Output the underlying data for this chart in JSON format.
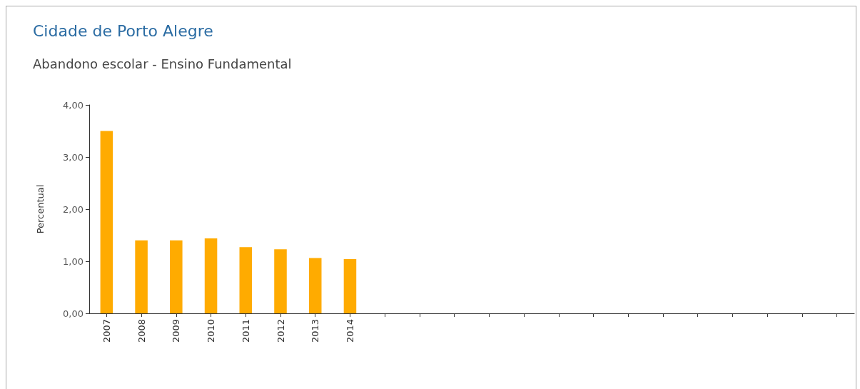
{
  "chart_data": {
    "type": "bar",
    "title": "Cidade de Porto Alegre",
    "subtitle": "Abandono escolar - Ensino Fundamental",
    "ylabel": "Percentual",
    "categories": [
      "2007",
      "2008",
      "2009",
      "2010",
      "2011",
      "2012",
      "2013",
      "2014",
      null,
      null,
      null,
      null,
      null,
      null,
      null,
      null,
      null,
      null,
      null,
      null,
      null,
      null
    ],
    "values": [
      3.5,
      1.4,
      1.4,
      1.44,
      1.27,
      1.23,
      1.06,
      1.04,
      null,
      null,
      null,
      null,
      null,
      null,
      null,
      null,
      null,
      null,
      null,
      null,
      null,
      null
    ],
    "color": "#ffab00",
    "ylim": [
      0,
      4
    ],
    "yticks": [
      {
        "value": 0,
        "label": "0,00"
      },
      {
        "value": 1,
        "label": "1,00"
      },
      {
        "value": 2,
        "label": "2,00"
      },
      {
        "value": 3,
        "label": "3,00"
      },
      {
        "value": 4,
        "label": "4,00"
      }
    ],
    "grid": false
  }
}
